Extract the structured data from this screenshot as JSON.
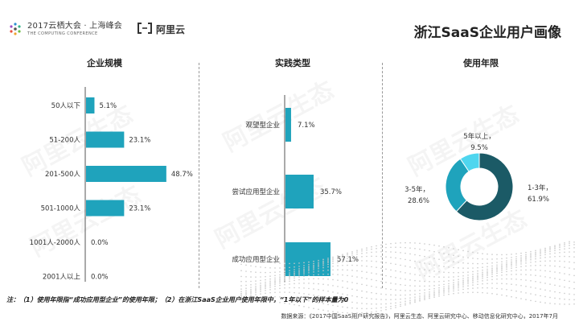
{
  "header": {
    "conference_cn": "2017云栖大会 · 上海峰会",
    "conference_en": "THE COMPUTING CONFERENCE",
    "brand": "阿里云",
    "title": "浙江SaaS企业用户画像"
  },
  "watermark_text": "阿里云生态",
  "chart_data": [
    {
      "type": "bar",
      "orientation": "horizontal",
      "title": "企业规模",
      "categories": [
        "50人以下",
        "51-200人",
        "201-500人",
        "501-1000人",
        "1001人-2000人",
        "2001人以上"
      ],
      "values": [
        5.1,
        23.1,
        48.7,
        23.1,
        0.0,
        0.0
      ],
      "value_labels": [
        "5.1%",
        "23.1%",
        "48.7%",
        "23.1%",
        "0.0%",
        "0.0%"
      ],
      "color": "#1fa3bc"
    },
    {
      "type": "bar",
      "orientation": "horizontal",
      "title": "实践类型",
      "categories": [
        "观望型企业",
        "尝试应用型企业",
        "成功应用型企业"
      ],
      "values": [
        7.1,
        35.7,
        57.1
      ],
      "value_labels": [
        "7.1%",
        "35.7%",
        "57.1%"
      ],
      "color": "#1fa3bc"
    },
    {
      "type": "pie",
      "style": "donut",
      "title": "使用年限",
      "categories": [
        "1-3年",
        "3-5年",
        "5年以上"
      ],
      "values": [
        61.9,
        28.6,
        9.5
      ],
      "value_labels": [
        "61.9%",
        "28.6%",
        "9.5%"
      ],
      "colors": [
        "#1b5a66",
        "#1fa3bc",
        "#4fd6ef"
      ]
    }
  ],
  "footnote": "注：（1）使用年限指“成功应用型企业”的使用年限；（2）在浙江SaaS企业用户使用年限中，“1年以下”的样本量为0",
  "source": "数据来源：《2017中国SaaS用户研究报告》，阿里云生态、阿里云研究中心、移动信息化研究中心，2017年7月"
}
